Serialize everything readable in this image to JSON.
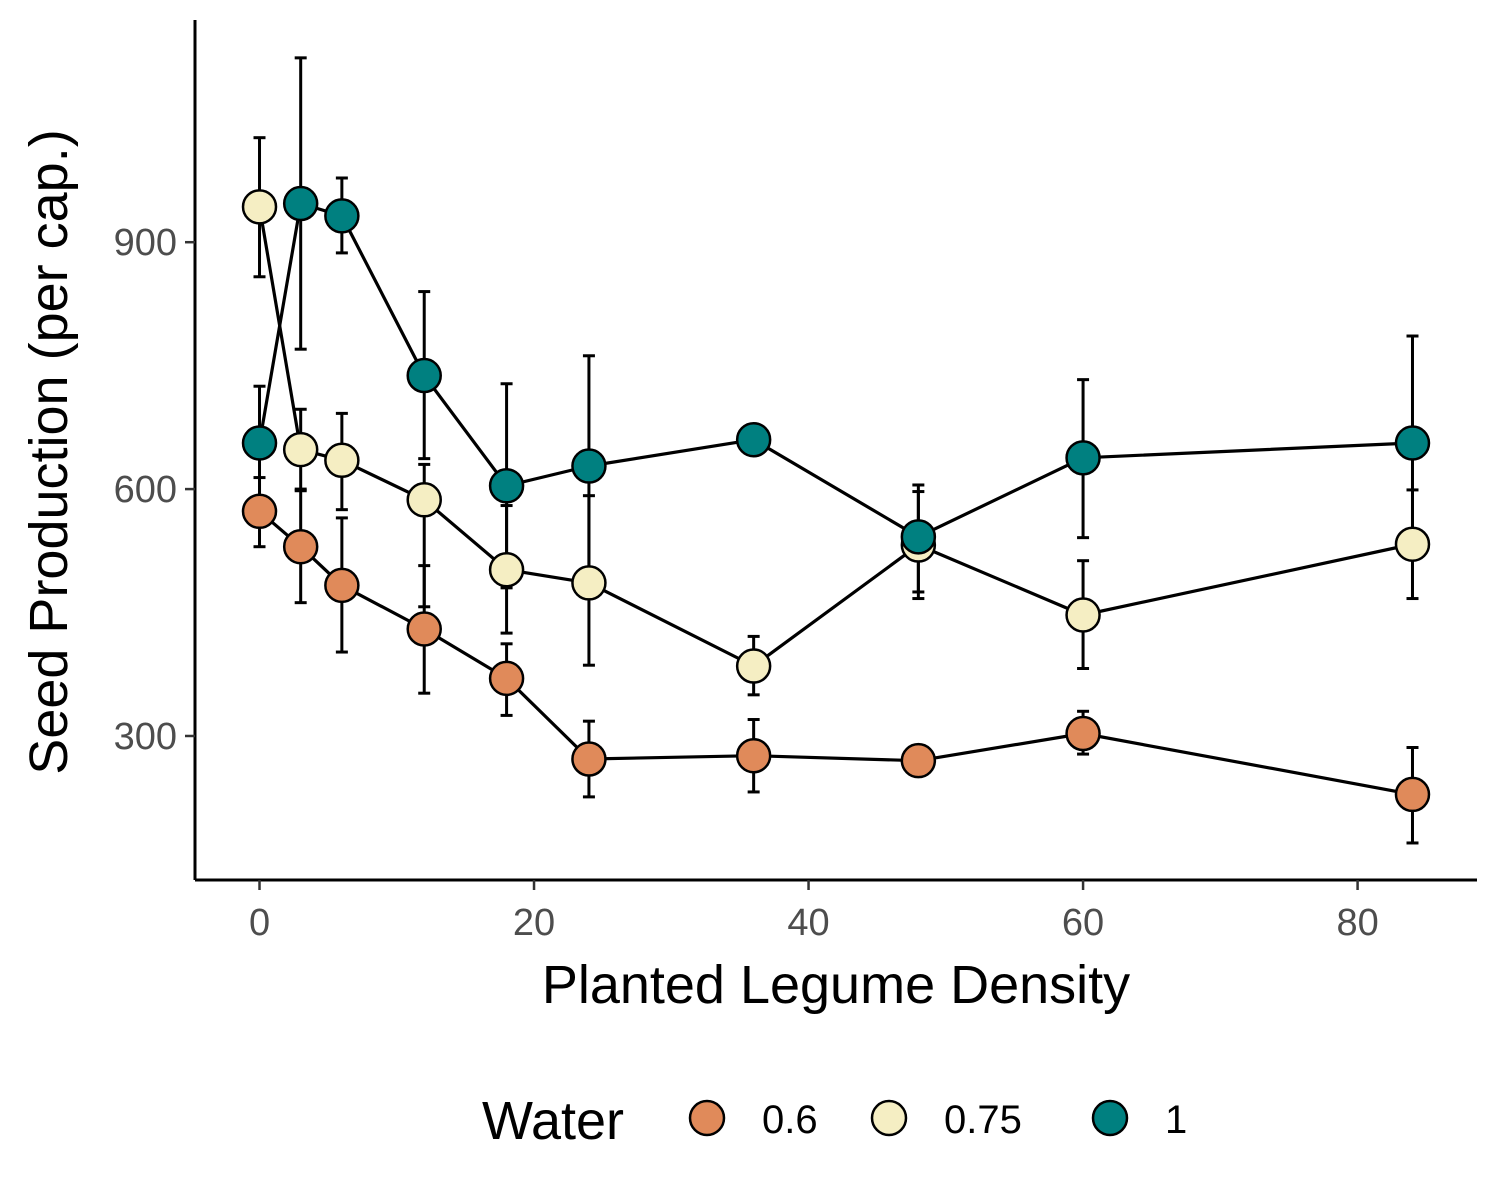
{
  "chart_data": {
    "type": "line",
    "xlabel": "Planted Legume Density",
    "ylabel": "Seed Production (per cap.)",
    "xlim": [
      -4.7,
      88.7
    ],
    "ylim": [
      125,
      1170
    ],
    "x_ticks": [
      0,
      20,
      40,
      60,
      80
    ],
    "y_ticks": [
      300,
      600,
      900
    ],
    "grid": false,
    "legend": {
      "title": "Water",
      "position": "bottom"
    },
    "x": [
      0,
      3,
      6,
      12,
      18,
      24,
      36,
      48,
      60,
      84
    ],
    "series": [
      {
        "name": "0.6",
        "color": "#E08A5A",
        "values": [
          573,
          530,
          483,
          430,
          370,
          272,
          276,
          270,
          303,
          229
        ],
        "lower": [
          530,
          462,
          402,
          352,
          325,
          226,
          232,
          253,
          278,
          170
        ],
        "upper": [
          614,
          598,
          565,
          507,
          412,
          318,
          320,
          287,
          330,
          286
        ]
      },
      {
        "name": "0.75",
        "color": "#F5EEC3",
        "values": [
          943,
          648,
          635,
          587,
          502,
          486,
          385,
          532,
          447,
          533
        ],
        "lower": [
          858,
          600,
          575,
          457,
          425,
          386,
          350,
          467,
          382,
          467
        ],
        "upper": [
          1027,
          697,
          692,
          630,
          580,
          592,
          421,
          597,
          513,
          599
        ]
      },
      {
        "name": "1",
        "color": "#008080",
        "values": [
          656,
          947,
          932,
          738,
          604,
          628,
          660,
          542,
          638,
          656
        ],
        "lower": [
          589,
          770,
          887,
          637,
          480,
          498,
          660,
          475,
          541,
          527
        ],
        "upper": [
          725,
          1124,
          978,
          840,
          728,
          762,
          660,
          605,
          733,
          786
        ]
      }
    ]
  }
}
